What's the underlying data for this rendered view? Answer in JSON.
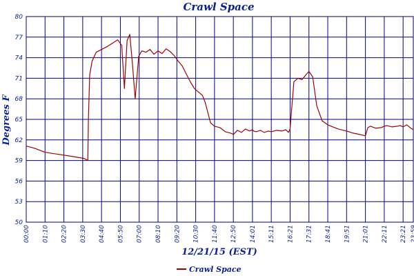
{
  "chart_data": {
    "type": "line",
    "title": "Crawl Space",
    "xlabel": "12/21/15 (EST)",
    "ylabel": "Degrees F",
    "ylim": [
      50,
      80
    ],
    "yticks": [
      50,
      53,
      56,
      59,
      62,
      65,
      68,
      71,
      74,
      77,
      80
    ],
    "xlim": [
      "00:00",
      "23:59"
    ],
    "xticks": [
      "00:00",
      "01:10",
      "02:20",
      "03:30",
      "04:40",
      "05:50",
      "07:00",
      "08:10",
      "09:20",
      "10:30",
      "11:40",
      "12:50",
      "14:01",
      "15:11",
      "16:21",
      "17:31",
      "18:41",
      "19:51",
      "21:01",
      "22:11",
      "23:21",
      "23:59"
    ],
    "grid": true,
    "legend_position": "bottom-left",
    "colors": {
      "series": "#a00000",
      "grid": "#000080",
      "text": "#0a1f8f"
    },
    "series": [
      {
        "name": "Crawl Space",
        "x": [
          "00:00",
          "00:30",
          "01:10",
          "02:00",
          "02:50",
          "03:35",
          "03:49",
          "03:51",
          "03:56",
          "04:05",
          "04:20",
          "04:40",
          "05:00",
          "05:20",
          "05:40",
          "05:55",
          "06:05",
          "06:15",
          "06:25",
          "06:35",
          "06:45",
          "06:58",
          "07:10",
          "07:25",
          "07:40",
          "07:55",
          "08:10",
          "08:25",
          "08:40",
          "08:55",
          "09:10",
          "09:25",
          "09:40",
          "09:55",
          "10:10",
          "10:25",
          "10:40",
          "10:55",
          "11:05",
          "11:15",
          "11:25",
          "11:40",
          "12:00",
          "12:20",
          "12:40",
          "12:50",
          "13:05",
          "13:20",
          "13:35",
          "13:50",
          "14:01",
          "14:05",
          "14:15",
          "14:30",
          "14:45",
          "15:00",
          "15:11",
          "15:30",
          "15:50",
          "16:05",
          "16:15",
          "16:21",
          "16:35",
          "16:50",
          "17:05",
          "17:20",
          "17:31",
          "17:45",
          "18:00",
          "18:20",
          "18:41",
          "19:00",
          "19:20",
          "19:51",
          "20:15",
          "20:40",
          "21:01",
          "21:10",
          "21:20",
          "21:40",
          "22:00",
          "22:11",
          "22:20",
          "22:40",
          "23:00",
          "23:10",
          "23:21",
          "23:35",
          "23:50",
          "23:59"
        ],
        "y": [
          61.1,
          60.8,
          60.2,
          59.9,
          59.6,
          59.3,
          59.0,
          65.0,
          71.5,
          73.5,
          74.8,
          75.2,
          75.6,
          76.1,
          76.6,
          75.8,
          69.5,
          76.5,
          77.4,
          73.0,
          68.0,
          74.2,
          75.0,
          74.8,
          75.2,
          74.5,
          75.0,
          74.6,
          75.3,
          74.9,
          74.3,
          73.5,
          72.8,
          71.6,
          70.5,
          69.5,
          69.0,
          68.5,
          67.5,
          66.0,
          64.5,
          64.0,
          63.8,
          63.2,
          63.0,
          62.8,
          63.4,
          63.1,
          63.6,
          63.3,
          63.5,
          63.3,
          63.2,
          63.4,
          63.1,
          63.3,
          63.2,
          63.4,
          63.3,
          63.5,
          63.1,
          63.6,
          70.5,
          71.0,
          70.8,
          71.5,
          72.0,
          71.2,
          67.0,
          64.8,
          64.2,
          63.9,
          63.6,
          63.3,
          63.0,
          62.8,
          62.6,
          63.8,
          64.0,
          63.7,
          63.8,
          64.0,
          64.1,
          63.9,
          64.0,
          64.1,
          63.9,
          64.2,
          63.7,
          63.5
        ]
      }
    ]
  }
}
